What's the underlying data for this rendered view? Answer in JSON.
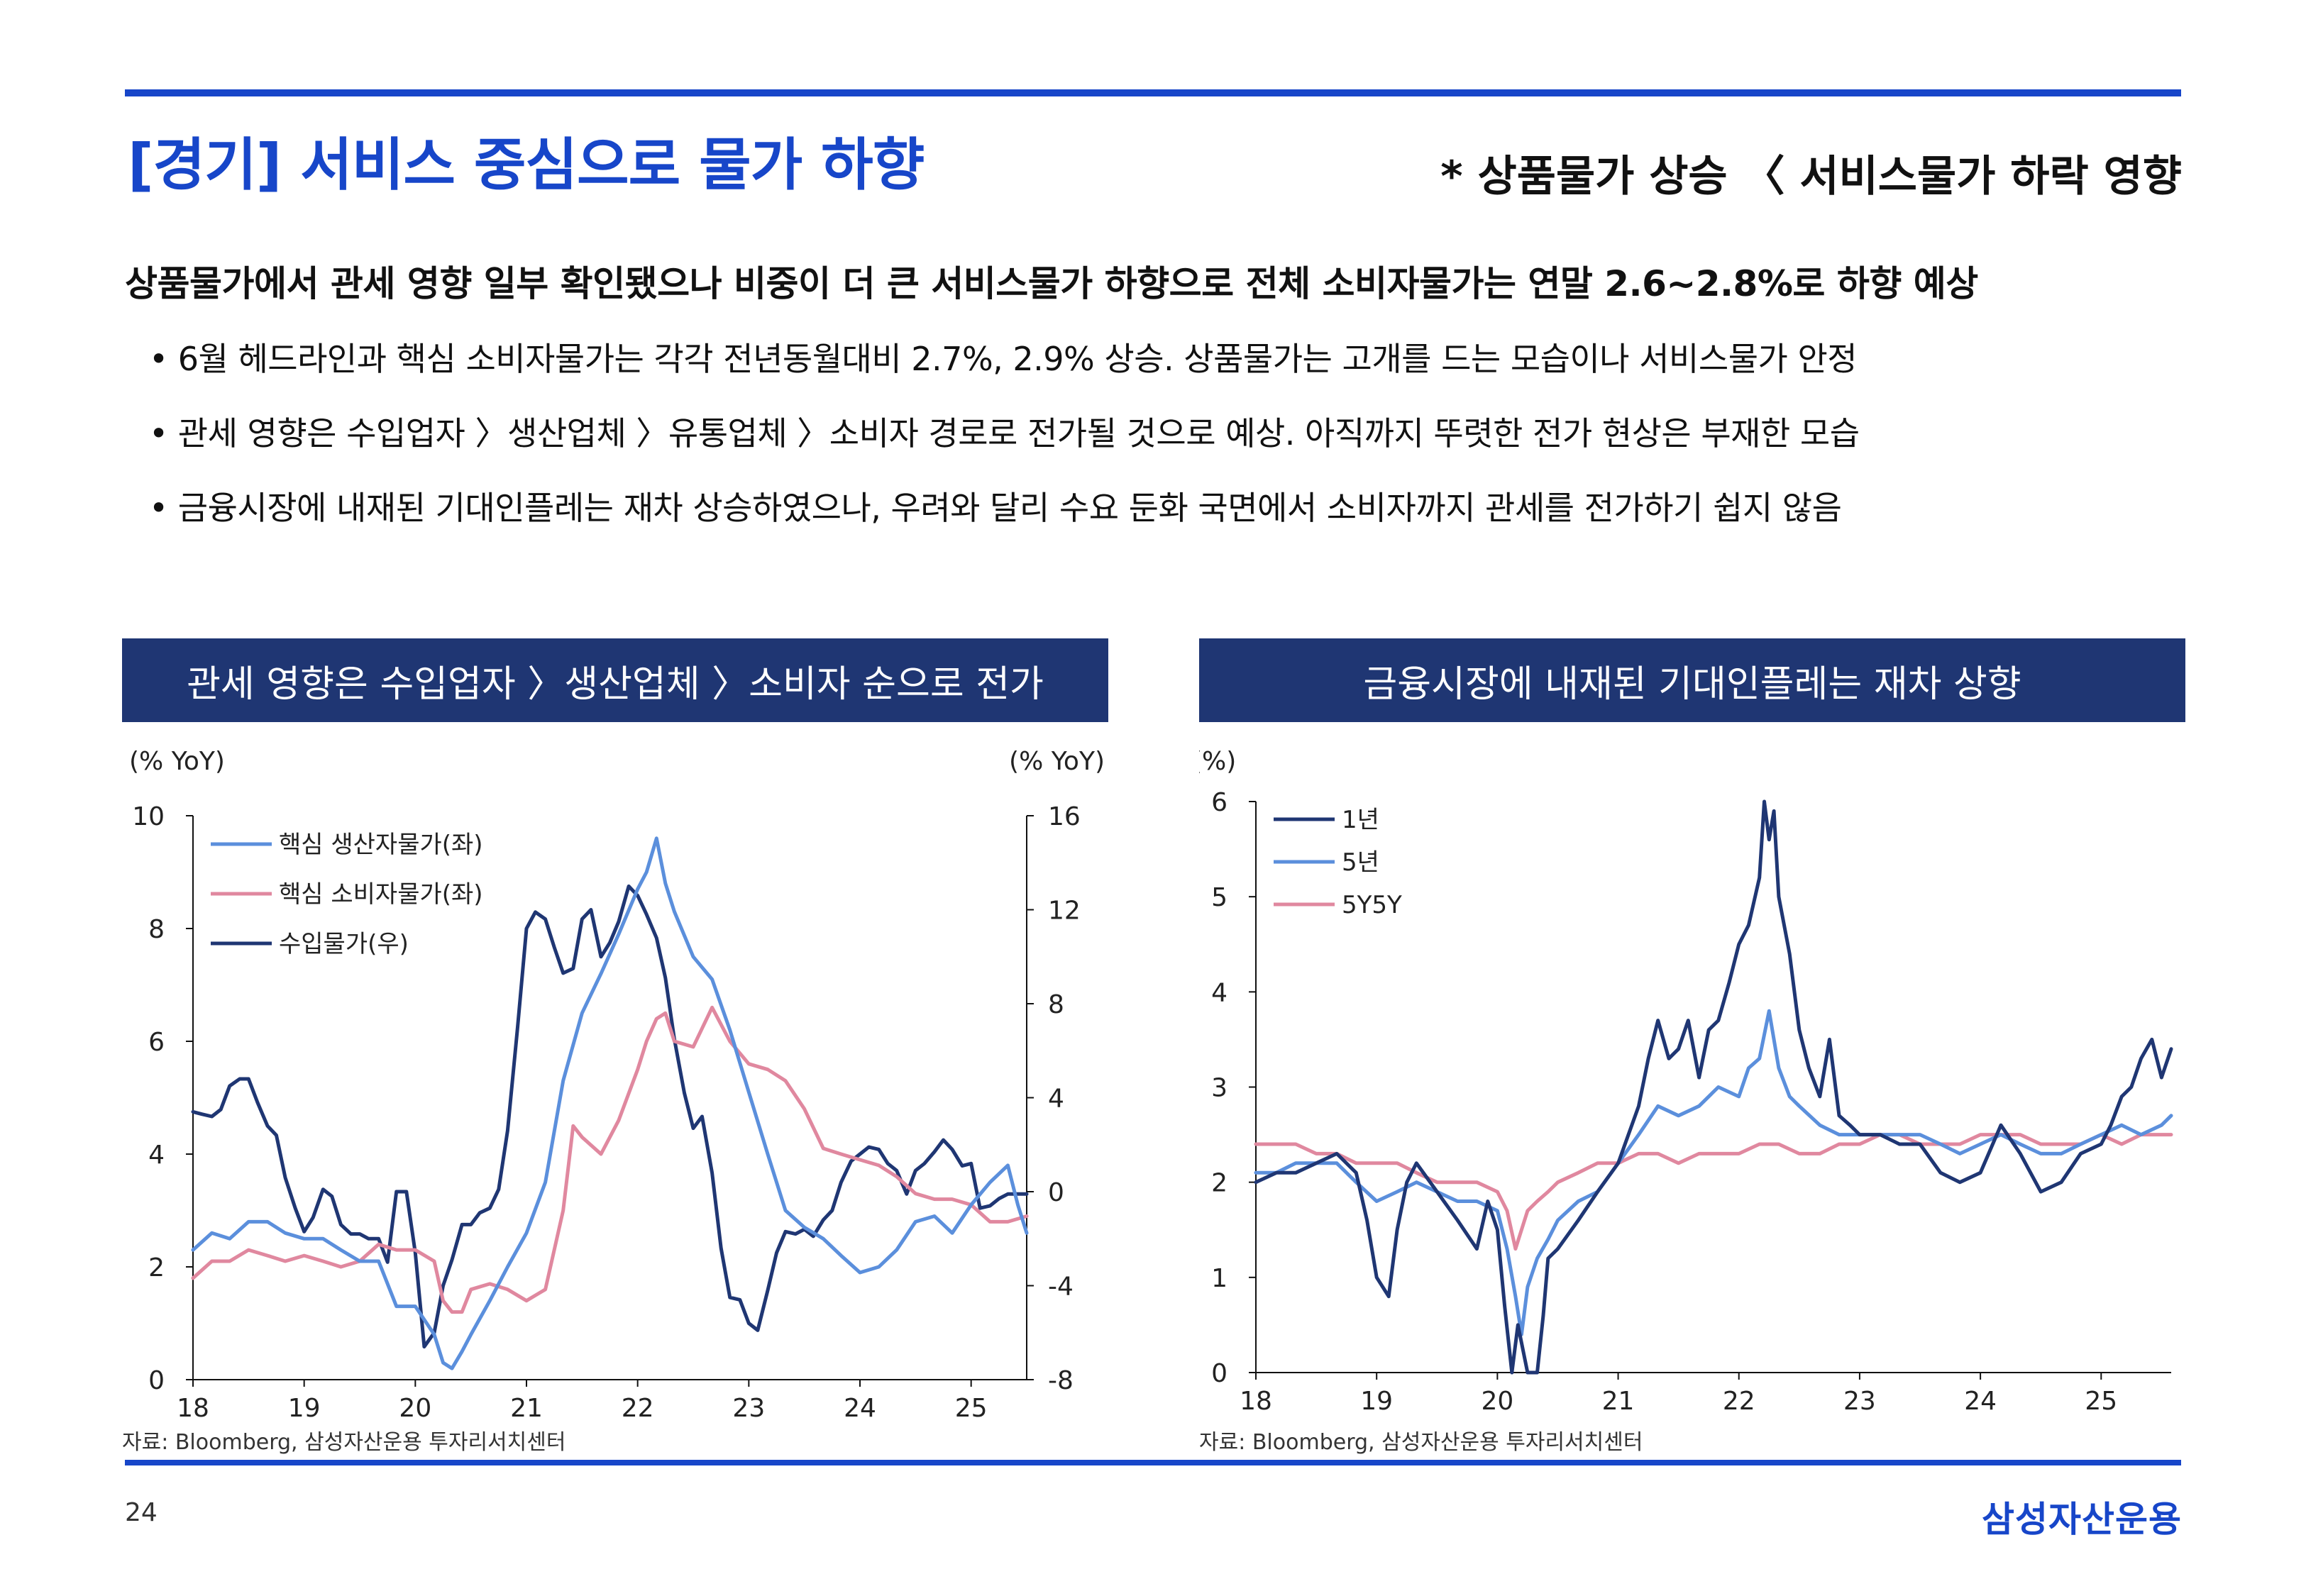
{
  "header": {
    "title": "[경기] 서비스 중심으로 물가 하향",
    "note": "* 상품물가 상승 〈 서비스물가 하락 영향"
  },
  "headline": "상품물가에서 관세 영향 일부 확인됐으나 비중이 더 큰 서비스물가 하향으로 전체 소비자물가는 연말 2.6~2.8%로 하향 예상",
  "bullets": [
    "• 6월 헤드라인과 핵심 소비자물가는 각각 전년동월대비 2.7%, 2.9% 상승. 상품물가는 고개를 드는 모습이나 서비스물가 안정",
    "• 관세 영향은 수입업자 〉생산업체 〉유통업체 〉소비자 경로로 전가될 것으로 예상. 아직까지 뚜렷한 전가 현상은 부재한 모습",
    "• 금융시장에 내재된 기대인플레는 재차 상승하였으나, 우려와 달리 수요 둔화 국면에서 소비자까지 관세를 전가하기 쉽지 않음"
  ],
  "panels": [
    {
      "heading": "관세 영향은 수입업자 〉생산업체 〉소비자 순으로 전가",
      "source": "자료: Bloomberg, 삼성자산운용 투자리서치센터"
    },
    {
      "heading": "금융시장에 내재된 기대인플레는 재차 상향",
      "source": "자료: Bloomberg, 삼성자산운용 투자리서치센터"
    }
  ],
  "footer": {
    "page": "24",
    "logo": "삼성자산운용"
  },
  "chart_data": [
    {
      "type": "line",
      "left_unit": "(% YoY)",
      "right_unit": "(% YoY)",
      "x_range": [
        2018.0,
        2025.5
      ],
      "x_ticks": [
        "18",
        "19",
        "20",
        "21",
        "22",
        "23",
        "24",
        "25"
      ],
      "y_left": {
        "range": [
          0,
          10
        ],
        "ticks": [
          "0",
          "2",
          "4",
          "6",
          "8",
          "10"
        ]
      },
      "y_right": {
        "range": [
          -8,
          16
        ],
        "ticks": [
          "-8",
          "-4",
          "0",
          "4",
          "8",
          "12",
          "16"
        ]
      },
      "legend_position": "top-left",
      "series": [
        {
          "name": "핵심 생산자물가(좌)",
          "axis": "left",
          "color": "#5b8fdc",
          "x": [
            2018.0,
            2018.17,
            2018.33,
            2018.5,
            2018.67,
            2018.83,
            2019.0,
            2019.17,
            2019.33,
            2019.5,
            2019.67,
            2019.83,
            2020.0,
            2020.17,
            2020.25,
            2020.33,
            2020.42,
            2020.5,
            2020.67,
            2020.83,
            2021.0,
            2021.17,
            2021.33,
            2021.5,
            2021.67,
            2021.83,
            2022.0,
            2022.08,
            2022.17,
            2022.25,
            2022.33,
            2022.5,
            2022.67,
            2022.83,
            2023.0,
            2023.17,
            2023.33,
            2023.5,
            2023.67,
            2023.83,
            2024.0,
            2024.17,
            2024.33,
            2024.5,
            2024.67,
            2024.83,
            2025.0,
            2025.17,
            2025.33,
            2025.42,
            2025.5
          ],
          "y": [
            2.3,
            2.6,
            2.5,
            2.8,
            2.8,
            2.6,
            2.5,
            2.5,
            2.3,
            2.1,
            2.1,
            1.3,
            1.3,
            0.8,
            0.3,
            0.2,
            0.5,
            0.8,
            1.4,
            2.0,
            2.6,
            3.5,
            5.3,
            6.5,
            7.2,
            7.9,
            8.7,
            9.0,
            9.6,
            8.8,
            8.3,
            7.5,
            7.1,
            6.2,
            5.1,
            4.0,
            3.0,
            2.7,
            2.5,
            2.2,
            1.9,
            2.0,
            2.3,
            2.8,
            2.9,
            2.6,
            3.1,
            3.5,
            3.8,
            3.1,
            2.6
          ]
        },
        {
          "name": "핵심 소비자물가(좌)",
          "axis": "left",
          "color": "#e0889f",
          "x": [
            2018.0,
            2018.17,
            2018.33,
            2018.5,
            2018.67,
            2018.83,
            2019.0,
            2019.17,
            2019.33,
            2019.5,
            2019.67,
            2019.83,
            2020.0,
            2020.17,
            2020.25,
            2020.33,
            2020.42,
            2020.5,
            2020.67,
            2020.83,
            2021.0,
            2021.17,
            2021.33,
            2021.42,
            2021.5,
            2021.67,
            2021.83,
            2022.0,
            2022.08,
            2022.17,
            2022.25,
            2022.33,
            2022.5,
            2022.67,
            2022.83,
            2023.0,
            2023.17,
            2023.33,
            2023.5,
            2023.67,
            2023.83,
            2024.0,
            2024.17,
            2024.33,
            2024.5,
            2024.67,
            2024.83,
            2025.0,
            2025.17,
            2025.33,
            2025.5
          ],
          "y": [
            1.8,
            2.1,
            2.1,
            2.3,
            2.2,
            2.1,
            2.2,
            2.1,
            2.0,
            2.1,
            2.4,
            2.3,
            2.3,
            2.1,
            1.4,
            1.2,
            1.2,
            1.6,
            1.7,
            1.6,
            1.4,
            1.6,
            3.0,
            4.5,
            4.3,
            4.0,
            4.6,
            5.5,
            6.0,
            6.4,
            6.5,
            6.0,
            5.9,
            6.6,
            6.0,
            5.6,
            5.5,
            5.3,
            4.8,
            4.1,
            4.0,
            3.9,
            3.8,
            3.6,
            3.3,
            3.2,
            3.2,
            3.1,
            2.8,
            2.8,
            2.9
          ]
        },
        {
          "name": "수입물가(우)",
          "axis": "right",
          "color": "#1f3673",
          "x": [
            2018.0,
            2018.08,
            2018.17,
            2018.25,
            2018.33,
            2018.42,
            2018.5,
            2018.58,
            2018.67,
            2018.75,
            2018.83,
            2018.92,
            2019.0,
            2019.08,
            2019.17,
            2019.25,
            2019.33,
            2019.42,
            2019.5,
            2019.58,
            2019.67,
            2019.75,
            2019.83,
            2019.92,
            2020.0,
            2020.08,
            2020.17,
            2020.25,
            2020.33,
            2020.42,
            2020.5,
            2020.58,
            2020.67,
            2020.75,
            2020.83,
            2020.92,
            2021.0,
            2021.08,
            2021.17,
            2021.25,
            2021.33,
            2021.42,
            2021.5,
            2021.58,
            2021.67,
            2021.75,
            2021.83,
            2021.92,
            2022.0,
            2022.08,
            2022.17,
            2022.25,
            2022.33,
            2022.42,
            2022.5,
            2022.58,
            2022.67,
            2022.75,
            2022.83,
            2022.92,
            2023.0,
            2023.08,
            2023.17,
            2023.25,
            2023.33,
            2023.42,
            2023.5,
            2023.58,
            2023.67,
            2023.75,
            2023.83,
            2023.92,
            2024.0,
            2024.08,
            2024.17,
            2024.25,
            2024.33,
            2024.42,
            2024.5,
            2024.58,
            2024.67,
            2024.75,
            2024.83,
            2024.92,
            2025.0,
            2025.08,
            2025.17,
            2025.25,
            2025.33,
            2025.42,
            2025.5
          ],
          "y": [
            3.4,
            3.3,
            3.2,
            3.5,
            4.5,
            4.8,
            4.8,
            3.8,
            2.8,
            2.4,
            0.6,
            -0.7,
            -1.7,
            -1.1,
            0.1,
            -0.2,
            -1.4,
            -1.8,
            -1.8,
            -2.0,
            -2.0,
            -3.0,
            0.0,
            0.0,
            -2.6,
            -6.6,
            -6.0,
            -4.0,
            -2.9,
            -1.4,
            -1.4,
            -0.9,
            -0.7,
            0.1,
            2.6,
            7.0,
            11.2,
            11.9,
            11.6,
            10.4,
            9.3,
            9.5,
            11.6,
            12.0,
            10.0,
            10.6,
            11.5,
            13.0,
            12.6,
            11.8,
            10.8,
            9.1,
            6.5,
            4.2,
            2.7,
            3.2,
            0.8,
            -2.4,
            -4.5,
            -4.6,
            -5.6,
            -5.9,
            -4.2,
            -2.6,
            -1.7,
            -1.8,
            -1.6,
            -1.9,
            -1.2,
            -0.8,
            0.4,
            1.3,
            1.6,
            1.9,
            1.8,
            1.2,
            0.9,
            -0.1,
            0.9,
            1.2,
            1.7,
            2.2,
            1.8,
            1.1,
            1.2,
            -0.7,
            -0.6,
            -0.3,
            -0.1,
            -0.1,
            -0.1
          ]
        }
      ]
    },
    {
      "type": "line",
      "left_unit": "(%)",
      "x_range": [
        2018.0,
        2025.58
      ],
      "x_ticks": [
        "18",
        "19",
        "20",
        "21",
        "22",
        "23",
        "24",
        "25"
      ],
      "y_left": {
        "range": [
          0,
          6
        ],
        "ticks": [
          "0",
          "1",
          "2",
          "3",
          "4",
          "5",
          "6"
        ]
      },
      "legend_position": "top-left",
      "series": [
        {
          "name": "1년",
          "color": "#1f3673",
          "x": [
            2018.0,
            2018.17,
            2018.33,
            2018.5,
            2018.67,
            2018.83,
            2018.92,
            2019.0,
            2019.1,
            2019.17,
            2019.25,
            2019.33,
            2019.5,
            2019.67,
            2019.83,
            2019.92,
            2020.0,
            2020.06,
            2020.12,
            2020.17,
            2020.25,
            2020.33,
            2020.38,
            2020.42,
            2020.5,
            2020.67,
            2020.83,
            2021.0,
            2021.17,
            2021.25,
            2021.33,
            2021.42,
            2021.5,
            2021.58,
            2021.67,
            2021.75,
            2021.83,
            2021.92,
            2022.0,
            2022.08,
            2022.17,
            2022.21,
            2022.25,
            2022.29,
            2022.33,
            2022.42,
            2022.5,
            2022.58,
            2022.67,
            2022.75,
            2022.83,
            2022.92,
            2023.0,
            2023.17,
            2023.33,
            2023.5,
            2023.67,
            2023.83,
            2024.0,
            2024.17,
            2024.33,
            2024.5,
            2024.67,
            2024.83,
            2025.0,
            2025.08,
            2025.17,
            2025.25,
            2025.33,
            2025.42,
            2025.5,
            2025.58
          ],
          "y": [
            2.0,
            2.1,
            2.1,
            2.2,
            2.3,
            2.1,
            1.6,
            1.0,
            0.8,
            1.5,
            2.0,
            2.2,
            1.9,
            1.6,
            1.3,
            1.8,
            1.5,
            0.7,
            0.0,
            0.5,
            0.0,
            0.0,
            0.6,
            1.2,
            1.3,
            1.6,
            1.9,
            2.2,
            2.8,
            3.3,
            3.7,
            3.3,
            3.4,
            3.7,
            3.1,
            3.6,
            3.7,
            4.1,
            4.5,
            4.7,
            5.2,
            6.0,
            5.6,
            5.9,
            5.0,
            4.4,
            3.6,
            3.2,
            2.9,
            3.5,
            2.7,
            2.6,
            2.5,
            2.5,
            2.4,
            2.4,
            2.1,
            2.0,
            2.1,
            2.6,
            2.3,
            1.9,
            2.0,
            2.3,
            2.4,
            2.6,
            2.9,
            3.0,
            3.3,
            3.5,
            3.1,
            3.4
          ]
        },
        {
          "name": "5년",
          "color": "#5b8fdc",
          "x": [
            2018.0,
            2018.17,
            2018.33,
            2018.5,
            2018.67,
            2018.83,
            2019.0,
            2019.17,
            2019.33,
            2019.5,
            2019.67,
            2019.83,
            2020.0,
            2020.08,
            2020.15,
            2020.2,
            2020.25,
            2020.33,
            2020.42,
            2020.5,
            2020.67,
            2020.83,
            2021.0,
            2021.17,
            2021.33,
            2021.5,
            2021.67,
            2021.83,
            2022.0,
            2022.08,
            2022.17,
            2022.25,
            2022.33,
            2022.42,
            2022.5,
            2022.67,
            2022.83,
            2023.0,
            2023.17,
            2023.33,
            2023.5,
            2023.67,
            2023.83,
            2024.0,
            2024.17,
            2024.33,
            2024.5,
            2024.67,
            2024.83,
            2025.0,
            2025.17,
            2025.33,
            2025.5,
            2025.58
          ],
          "y": [
            2.1,
            2.1,
            2.2,
            2.2,
            2.2,
            2.0,
            1.8,
            1.9,
            2.0,
            1.9,
            1.8,
            1.8,
            1.7,
            1.3,
            0.8,
            0.4,
            0.9,
            1.2,
            1.4,
            1.6,
            1.8,
            1.9,
            2.2,
            2.5,
            2.8,
            2.7,
            2.8,
            3.0,
            2.9,
            3.2,
            3.3,
            3.8,
            3.2,
            2.9,
            2.8,
            2.6,
            2.5,
            2.5,
            2.5,
            2.5,
            2.5,
            2.4,
            2.3,
            2.4,
            2.5,
            2.4,
            2.3,
            2.3,
            2.4,
            2.5,
            2.6,
            2.5,
            2.6,
            2.7
          ]
        },
        {
          "name": "5Y5Y",
          "color": "#e0889f",
          "x": [
            2018.0,
            2018.17,
            2018.33,
            2018.5,
            2018.67,
            2018.83,
            2019.0,
            2019.17,
            2019.33,
            2019.5,
            2019.67,
            2019.83,
            2020.0,
            2020.08,
            2020.15,
            2020.2,
            2020.25,
            2020.33,
            2020.42,
            2020.5,
            2020.67,
            2020.83,
            2021.0,
            2021.17,
            2021.33,
            2021.5,
            2021.67,
            2021.83,
            2022.0,
            2022.17,
            2022.33,
            2022.5,
            2022.67,
            2022.83,
            2023.0,
            2023.17,
            2023.33,
            2023.5,
            2023.67,
            2023.83,
            2024.0,
            2024.17,
            2024.33,
            2024.5,
            2024.67,
            2024.83,
            2025.0,
            2025.17,
            2025.33,
            2025.5,
            2025.58
          ],
          "y": [
            2.4,
            2.4,
            2.4,
            2.3,
            2.3,
            2.2,
            2.2,
            2.2,
            2.1,
            2.0,
            2.0,
            2.0,
            1.9,
            1.7,
            1.3,
            1.5,
            1.7,
            1.8,
            1.9,
            2.0,
            2.1,
            2.2,
            2.2,
            2.3,
            2.3,
            2.2,
            2.3,
            2.3,
            2.3,
            2.4,
            2.4,
            2.3,
            2.3,
            2.4,
            2.4,
            2.5,
            2.5,
            2.4,
            2.4,
            2.4,
            2.5,
            2.5,
            2.5,
            2.4,
            2.4,
            2.4,
            2.5,
            2.4,
            2.5,
            2.5,
            2.5
          ]
        }
      ]
    }
  ]
}
